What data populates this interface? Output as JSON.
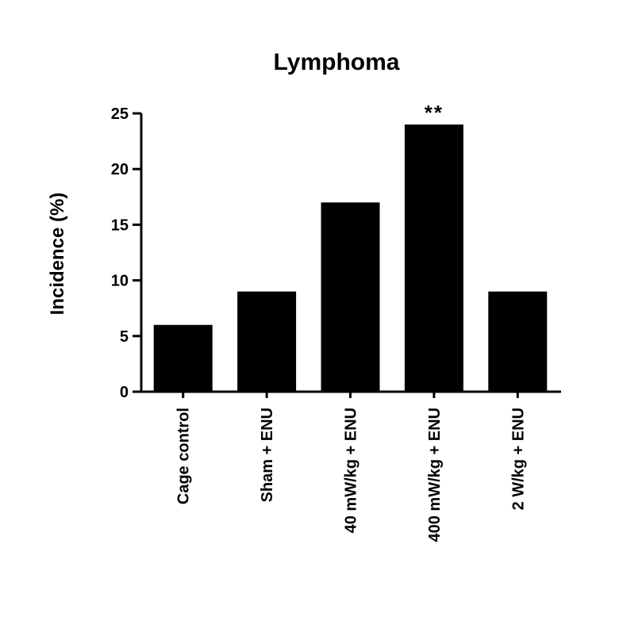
{
  "chart_data": {
    "type": "bar",
    "title": "Lymphoma",
    "xlabel": "",
    "ylabel": "Incidence (%)",
    "categories": [
      "Cage control",
      "Sham + ENU",
      "40 mW/kg + ENU",
      "400 mW/kg + ENU",
      "2 W/kg + ENU"
    ],
    "values": [
      6,
      9,
      17,
      24,
      9
    ],
    "ylim": [
      0,
      25
    ],
    "yticks": [
      0,
      5,
      10,
      15,
      20,
      25
    ],
    "annotations": [
      {
        "category": "400 mW/kg + ENU",
        "text": "**"
      }
    ],
    "bar_color": "#000000",
    "grid": false
  }
}
